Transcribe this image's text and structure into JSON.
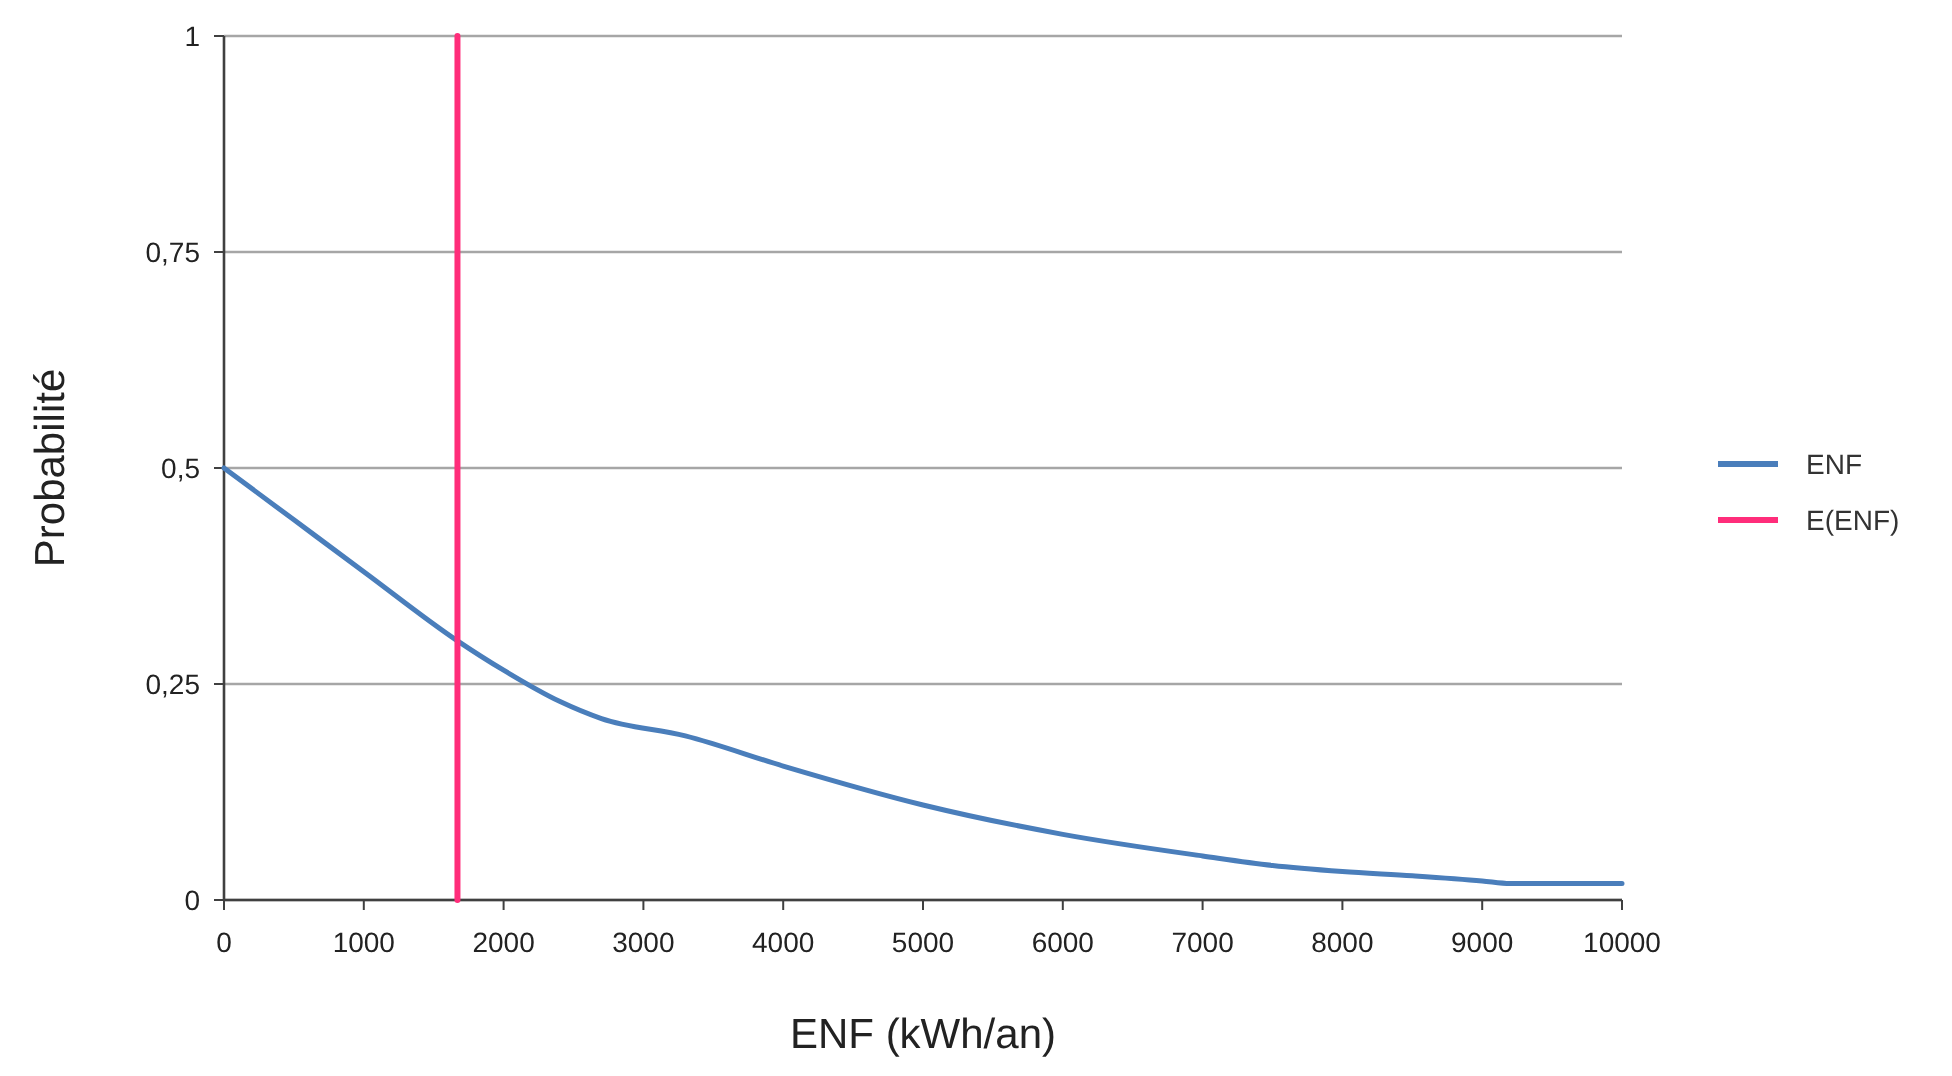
{
  "chart_data": {
    "type": "line",
    "xlabel": "ENF (kWh/an)",
    "ylabel": "Probabilité",
    "xlim": [
      0,
      10000
    ],
    "xticks": [
      0,
      1000,
      2000,
      3000,
      4000,
      5000,
      6000,
      7000,
      8000,
      9000,
      10000
    ],
    "ylim": [
      0,
      1
    ],
    "yticks": [
      0,
      {
        "value": 0.25,
        "label": "0,25"
      },
      {
        "value": 0.5,
        "label": "0,5"
      },
      {
        "value": 0.75,
        "label": "0,75"
      },
      1
    ],
    "grid": "y",
    "legend": "right",
    "marker": "none",
    "line_style": "solid",
    "series": [
      {
        "name": "ENF",
        "color": "#4a7ebb",
        "x": [
          0,
          500,
          1000,
          1670,
          2000,
          2400,
          2700,
          3300,
          4000,
          5000,
          6000,
          7000,
          7500,
          8000,
          8500,
          9000,
          9200,
          10000
        ],
        "values": [
          0.5,
          0.44,
          0.38,
          0.3,
          0.266,
          0.23,
          0.21,
          0.19,
          0.155,
          0.11,
          0.076,
          0.051,
          0.04,
          0.033,
          0.028,
          0.022,
          0.019,
          0.019
        ]
      },
      {
        "name": "E(ENF)",
        "color": "#ff2d7a",
        "x": [
          1670,
          1670
        ],
        "values": [
          0,
          1
        ]
      }
    ]
  }
}
